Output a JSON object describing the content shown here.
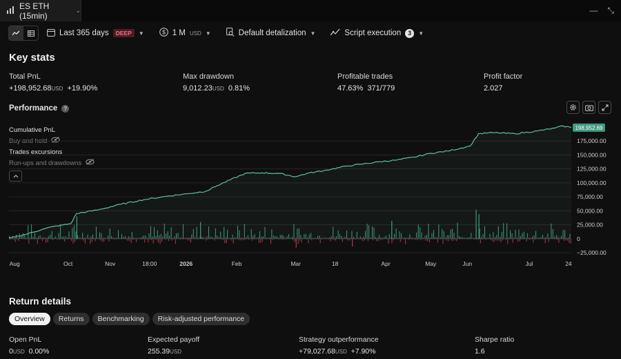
{
  "window": {
    "tab_title": "ES ETH (15min)"
  },
  "toolbar": {
    "date_range": "Last 365 days",
    "date_badge": "DEEP",
    "capital": "1 M",
    "capital_unit": "USD",
    "detail": "Default detalization",
    "execution": "Script execution",
    "execution_count": "3"
  },
  "key_stats": {
    "title": "Key stats",
    "total_pnl": {
      "label": "Total PnL",
      "value": "+198,952.68",
      "unit": "USD",
      "pct": "+19.90%"
    },
    "max_drawdown": {
      "label": "Max drawdown",
      "value": "9,012.23",
      "unit": "USD",
      "pct": "0.81%"
    },
    "profitable_trades": {
      "label": "Profitable trades",
      "pct": "47.63%",
      "ratio": "371/779"
    },
    "profit_factor": {
      "label": "Profit factor",
      "value": "2.027"
    }
  },
  "performance": {
    "title": "Performance",
    "legend": [
      "Cumulative PnL",
      "Buy and hold",
      "Trades excursions",
      "Run-ups and drawdowns"
    ]
  },
  "colors": {
    "pnl_line": "#5fbfa0",
    "positive_bar": "#3f9a80",
    "negative_bar": "#b23b47",
    "badge": "#4a1d26"
  },
  "chart_data": {
    "type": "line",
    "ylim": [
      -25000,
      200000
    ],
    "y_ticks": [
      "175,000.00",
      "150,000.00",
      "125,000.00",
      "100,000.00",
      "75,000.00",
      "50,000.00",
      "25,000.00",
      "0",
      "−25,000.00"
    ],
    "y_tick_values": [
      175000,
      150000,
      125000,
      100000,
      75000,
      50000,
      25000,
      0,
      -25000
    ],
    "x_ticks": [
      "Aug",
      "Oct",
      "Nov",
      "18:00",
      "2026",
      "Feb",
      "Mar",
      "18",
      "Apr",
      "May",
      "Jun",
      "Jul",
      "24"
    ],
    "x_tick_positions": [
      0.01,
      0.105,
      0.18,
      0.25,
      0.315,
      0.405,
      0.51,
      0.58,
      0.67,
      0.75,
      0.815,
      0.925,
      0.995
    ],
    "last_value_label": "198,952.69",
    "series": [
      {
        "name": "Cumulative PnL",
        "x": [
          0,
          0.03,
          0.06,
          0.08,
          0.11,
          0.12,
          0.16,
          0.2,
          0.24,
          0.28,
          0.32,
          0.35,
          0.37,
          0.42,
          0.45,
          0.48,
          0.51,
          0.53,
          0.56,
          0.6,
          0.63,
          0.66,
          0.69,
          0.72,
          0.75,
          0.78,
          0.82,
          0.835,
          0.86,
          0.9,
          0.94,
          0.97,
          0.985,
          1.0
        ],
        "values": [
          1000,
          8000,
          17000,
          22000,
          27000,
          45000,
          52000,
          62000,
          70000,
          76000,
          81000,
          85000,
          95000,
          117000,
          118000,
          117000,
          111000,
          117000,
          122000,
          130000,
          134000,
          138000,
          141000,
          146000,
          153000,
          157000,
          166000,
          188000,
          190000,
          188000,
          193000,
          198000,
          202000,
          198952.69
        ]
      }
    ]
  },
  "return_details": {
    "title": "Return details",
    "tabs": [
      "Overview",
      "Returns",
      "Benchmarking",
      "Risk-adjusted performance"
    ],
    "open_pnl": {
      "label": "Open PnL",
      "value": "0",
      "unit": "USD",
      "pct": "0.00%"
    },
    "expected_payoff": {
      "label": "Expected payoff",
      "value": "255.39",
      "unit": "USD"
    },
    "outperformance": {
      "label": "Strategy outperformance",
      "value": "+79,027.68",
      "unit": "USD",
      "pct": "+7.90%"
    },
    "sharpe": {
      "label": "Sharpe ratio",
      "value": "1.6"
    }
  }
}
